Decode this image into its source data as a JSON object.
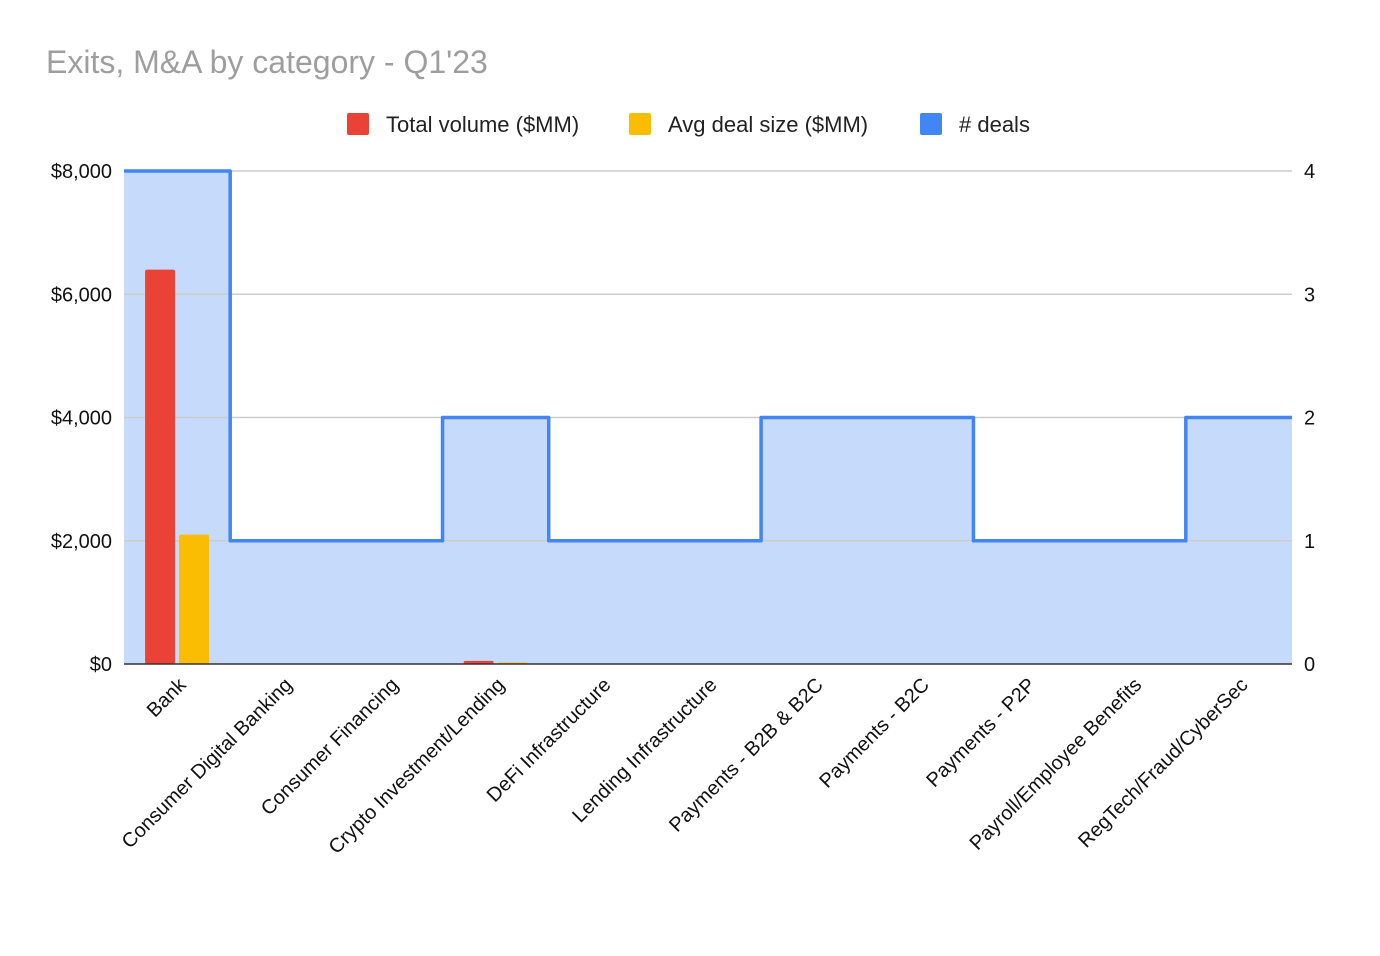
{
  "chart_data": {
    "type": "bar",
    "title": "Exits, M&A by category - Q1'23",
    "categories": [
      "Bank",
      "Consumer Digital Banking",
      "Consumer Financing",
      "Crypto Investment/Lending",
      "DeFi Infrastructure",
      "Lending Infrastructure",
      "Payments - B2B & B2C",
      "Payments - B2C",
      "Payments - P2P",
      "Payroll/Employee Benefits",
      "RegTech/Fraud/CyberSec"
    ],
    "series": [
      {
        "name": "Total volume ($MM)",
        "type": "bar",
        "axis": "left",
        "color": "#ea4335",
        "values": [
          6400,
          0,
          0,
          50,
          0,
          0,
          0,
          0,
          0,
          0,
          0
        ]
      },
      {
        "name": "Avg deal size ($MM)",
        "type": "bar",
        "axis": "left",
        "color": "#fbbc04",
        "values": [
          2100,
          0,
          0,
          25,
          0,
          0,
          0,
          0,
          0,
          0,
          0
        ]
      },
      {
        "name": "# deals",
        "type": "stepped-area",
        "axis": "right",
        "color": "#4285f4",
        "fill": "#c6dafc",
        "values": [
          4,
          1,
          1,
          2,
          1,
          1,
          2,
          2,
          1,
          1,
          2
        ]
      }
    ],
    "y_left": {
      "ylim": [
        0,
        8000
      ],
      "ticks": [
        "$0",
        "$2,000",
        "$4,000",
        "$6,000",
        "$8,000"
      ],
      "tick_values": [
        0,
        2000,
        4000,
        6000,
        8000
      ]
    },
    "y_right": {
      "ylim": [
        0,
        4
      ],
      "ticks": [
        "0",
        "1",
        "2",
        "3",
        "4"
      ],
      "tick_values": [
        0,
        1,
        2,
        3,
        4
      ]
    },
    "grid": true,
    "legend": "top"
  }
}
